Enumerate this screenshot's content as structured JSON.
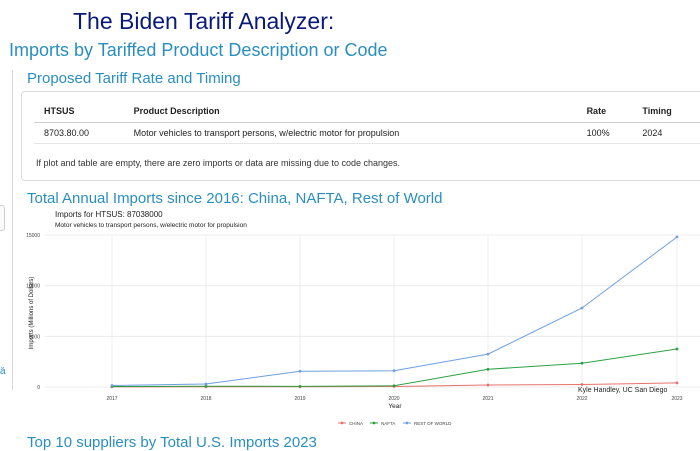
{
  "header": {
    "title": "The Biden Tariff Analyzer:",
    "subtitle": "Imports by Tariffed Product Description or Code"
  },
  "tariff_section": {
    "heading": "Proposed Tariff Rate and Timing",
    "columns": [
      "HTSUS",
      "Product Description",
      "Rate",
      "Timing"
    ],
    "rows": [
      {
        "htsus": "8703.80.00",
        "description": "Motor vehicles to transport persons, w/electric motor for propulsion",
        "rate": "100%",
        "timing": "2024"
      }
    ],
    "note": "If plot and table are empty, there are zero imports or data are missing due to code changes."
  },
  "chart_section": {
    "heading": "Total Annual Imports since 2016: China, NAFTA, Rest of World"
  },
  "colors": {
    "china": "#e8726d",
    "nafta": "#2ea043",
    "row": "#6f9fe0"
  },
  "chart_data": {
    "type": "line",
    "title": "Imports for HTSUS: 87038000",
    "subtitle": "Motor vehicles to transport persons, w/electric motor for propulsion",
    "xlabel": "Year",
    "ylabel": "Imports (Millions of Dollars)",
    "categories": [
      "2017",
      "2018",
      "2019",
      "2020",
      "2021",
      "2022",
      "2023"
    ],
    "ylim": [
      0,
      15000
    ],
    "yticks": [
      "0",
      "5000",
      "10000",
      "15000"
    ],
    "series": [
      {
        "name": "CHINA",
        "color": "#e8726d",
        "values": [
          10,
          15,
          20,
          50,
          200,
          250,
          400
        ]
      },
      {
        "name": "NAFTA",
        "color": "#2ea043",
        "values": [
          50,
          80,
          60,
          120,
          1750,
          2350,
          3750
        ]
      },
      {
        "name": "REST OF WORLD",
        "color": "#6f9fe0",
        "values": [
          150,
          300,
          1550,
          1600,
          3250,
          7800,
          14800
        ]
      }
    ],
    "annotation": "Kyle Handley, UC San Diego",
    "legend_position": "bottom"
  },
  "footer": {
    "heading": "Top 10 suppliers by Total U.S. Imports 2023"
  }
}
